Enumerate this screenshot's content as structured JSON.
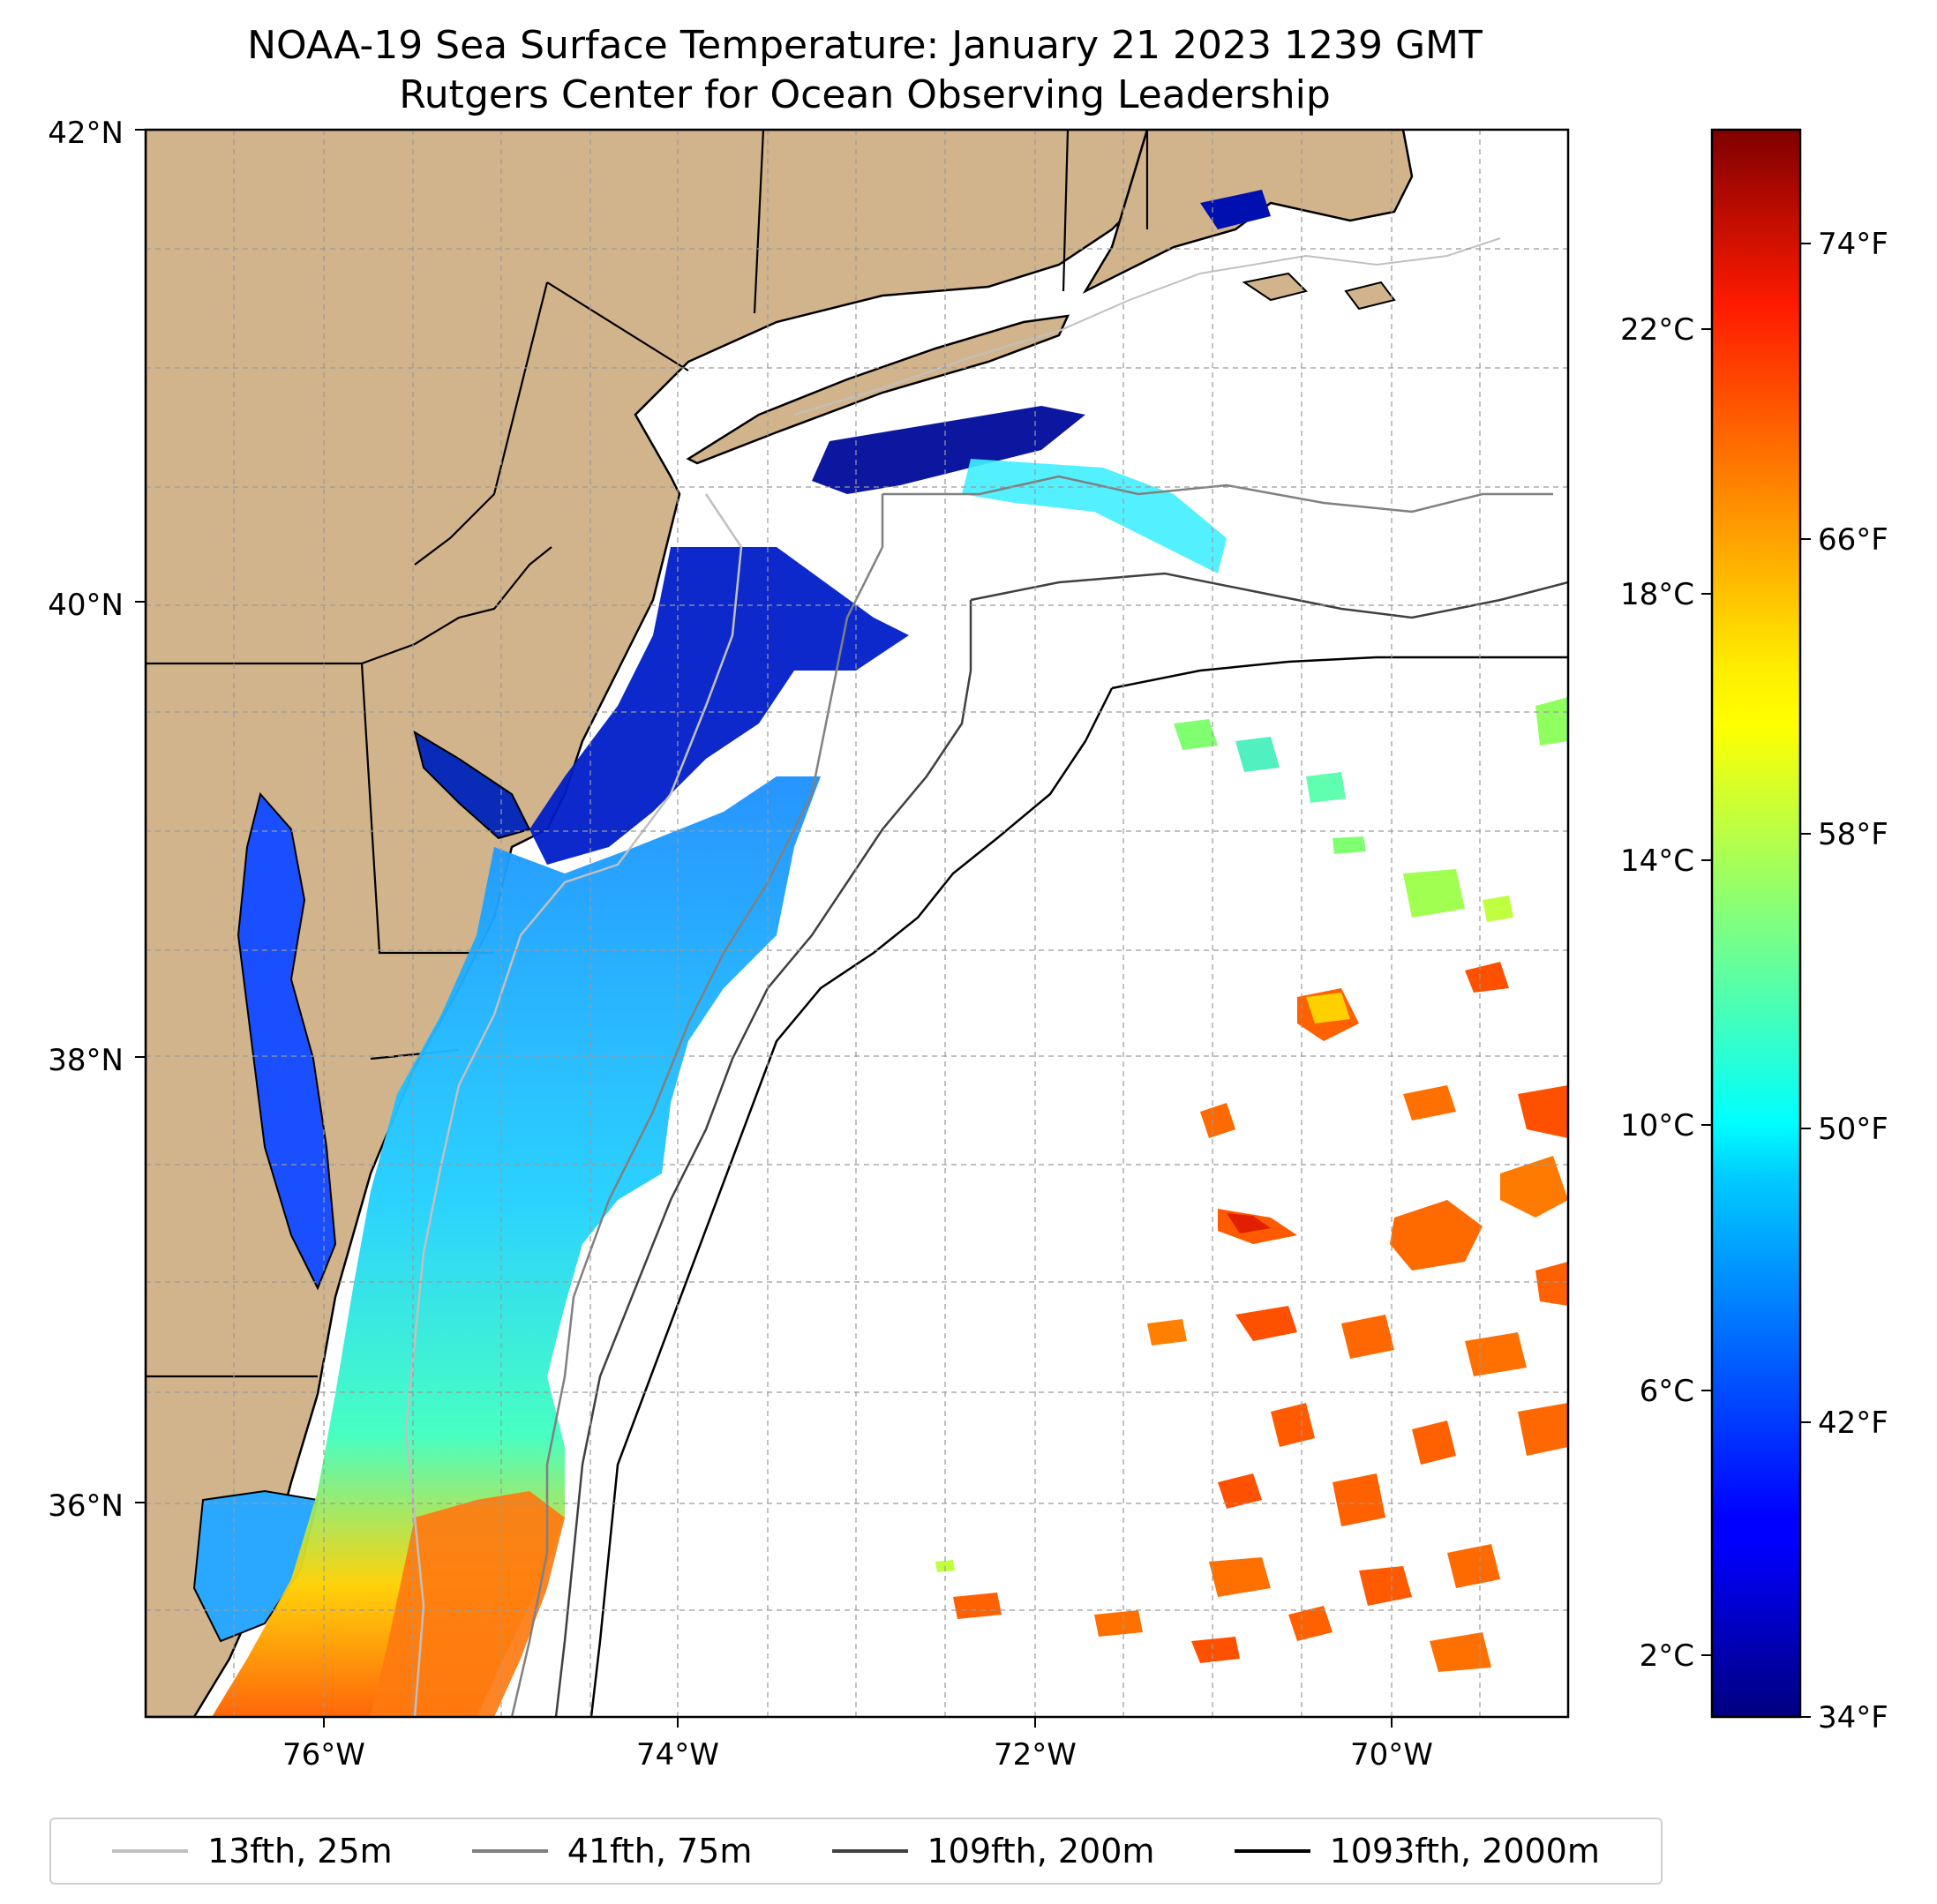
{
  "title": {
    "line1": "NOAA-19 Sea Surface Temperature: January 21 2023 1239 GMT",
    "line2": "Rutgers Center for Ocean Observing Leadership"
  },
  "map": {
    "lat_range": [
      35,
      42
    ],
    "lon_range": [
      -77,
      -69
    ],
    "lat_ticks": [
      "42°N",
      "40°N",
      "38°N",
      "36°N"
    ],
    "lon_ticks": [
      "76°W",
      "74°W",
      "72°W",
      "70°W"
    ],
    "land_color": "#d2b48c",
    "grid": true
  },
  "colorbar": {
    "colormap": "jet",
    "celsius_ticks": [
      "22°C",
      "18°C",
      "14°C",
      "10°C",
      "6°C",
      "2°C"
    ],
    "fahrenheit_ticks": [
      "74°F",
      "66°F",
      "58°F",
      "50°F",
      "42°F",
      "34°F"
    ]
  },
  "legend": [
    {
      "label": "13fth, 25m",
      "color": "#c0c0c0"
    },
    {
      "label": "41fth, 75m",
      "color": "#808080"
    },
    {
      "label": "109fth, 200m",
      "color": "#404040"
    },
    {
      "label": "1093fth, 2000m",
      "color": "#000000"
    }
  ]
}
